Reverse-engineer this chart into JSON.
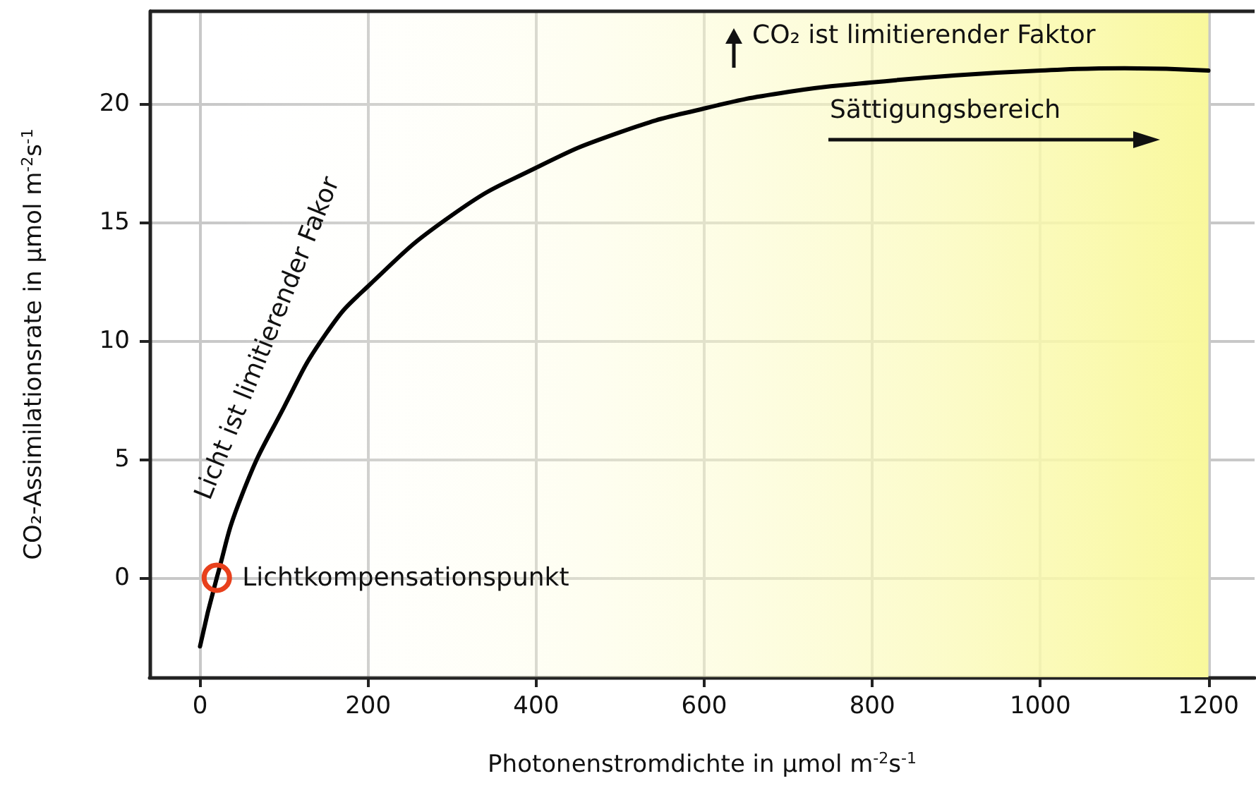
{
  "chart_data": {
    "type": "line",
    "xlabel": "Photonenstromdichte in µmol m$^{-2}$s$^{-1}$",
    "ylabel": "CO₂-Assimilationsrate in µmol m$^{-2}$s$^{-1}$",
    "x": [
      0,
      20,
      50,
      100,
      150,
      200,
      300,
      400,
      500,
      600,
      700,
      800,
      900,
      1000,
      1100,
      1200
    ],
    "series": [
      {
        "color": "#000000",
        "values": [
          -2.9,
          0,
          3.5,
          7.2,
          10.3,
          12.3,
          15.3,
          17.3,
          18.8,
          19.8,
          20.5,
          20.9,
          21.2,
          21.4,
          21.5,
          21.4
        ]
      }
    ],
    "xlim": [
      -60,
      1255
    ],
    "ylim": [
      -4.2,
      23.9
    ],
    "xticks": [
      0,
      200,
      400,
      600,
      800,
      1000,
      1200
    ],
    "yticks": [
      0,
      5,
      10,
      15,
      20
    ],
    "grid": true,
    "marker": "none",
    "line_style": "solid",
    "bands": [
      {
        "axis": "x",
        "from": 0,
        "to": 1200,
        "color": "#f9f89c"
      }
    ],
    "annotations": [
      {
        "text": "Lichtkompensationspunkt",
        "x": 20,
        "y": 0
      },
      "Licht ist limitierender Fakor",
      "CO₂ ist limitierender Faktor",
      "Sättigungsbereich"
    ]
  }
}
